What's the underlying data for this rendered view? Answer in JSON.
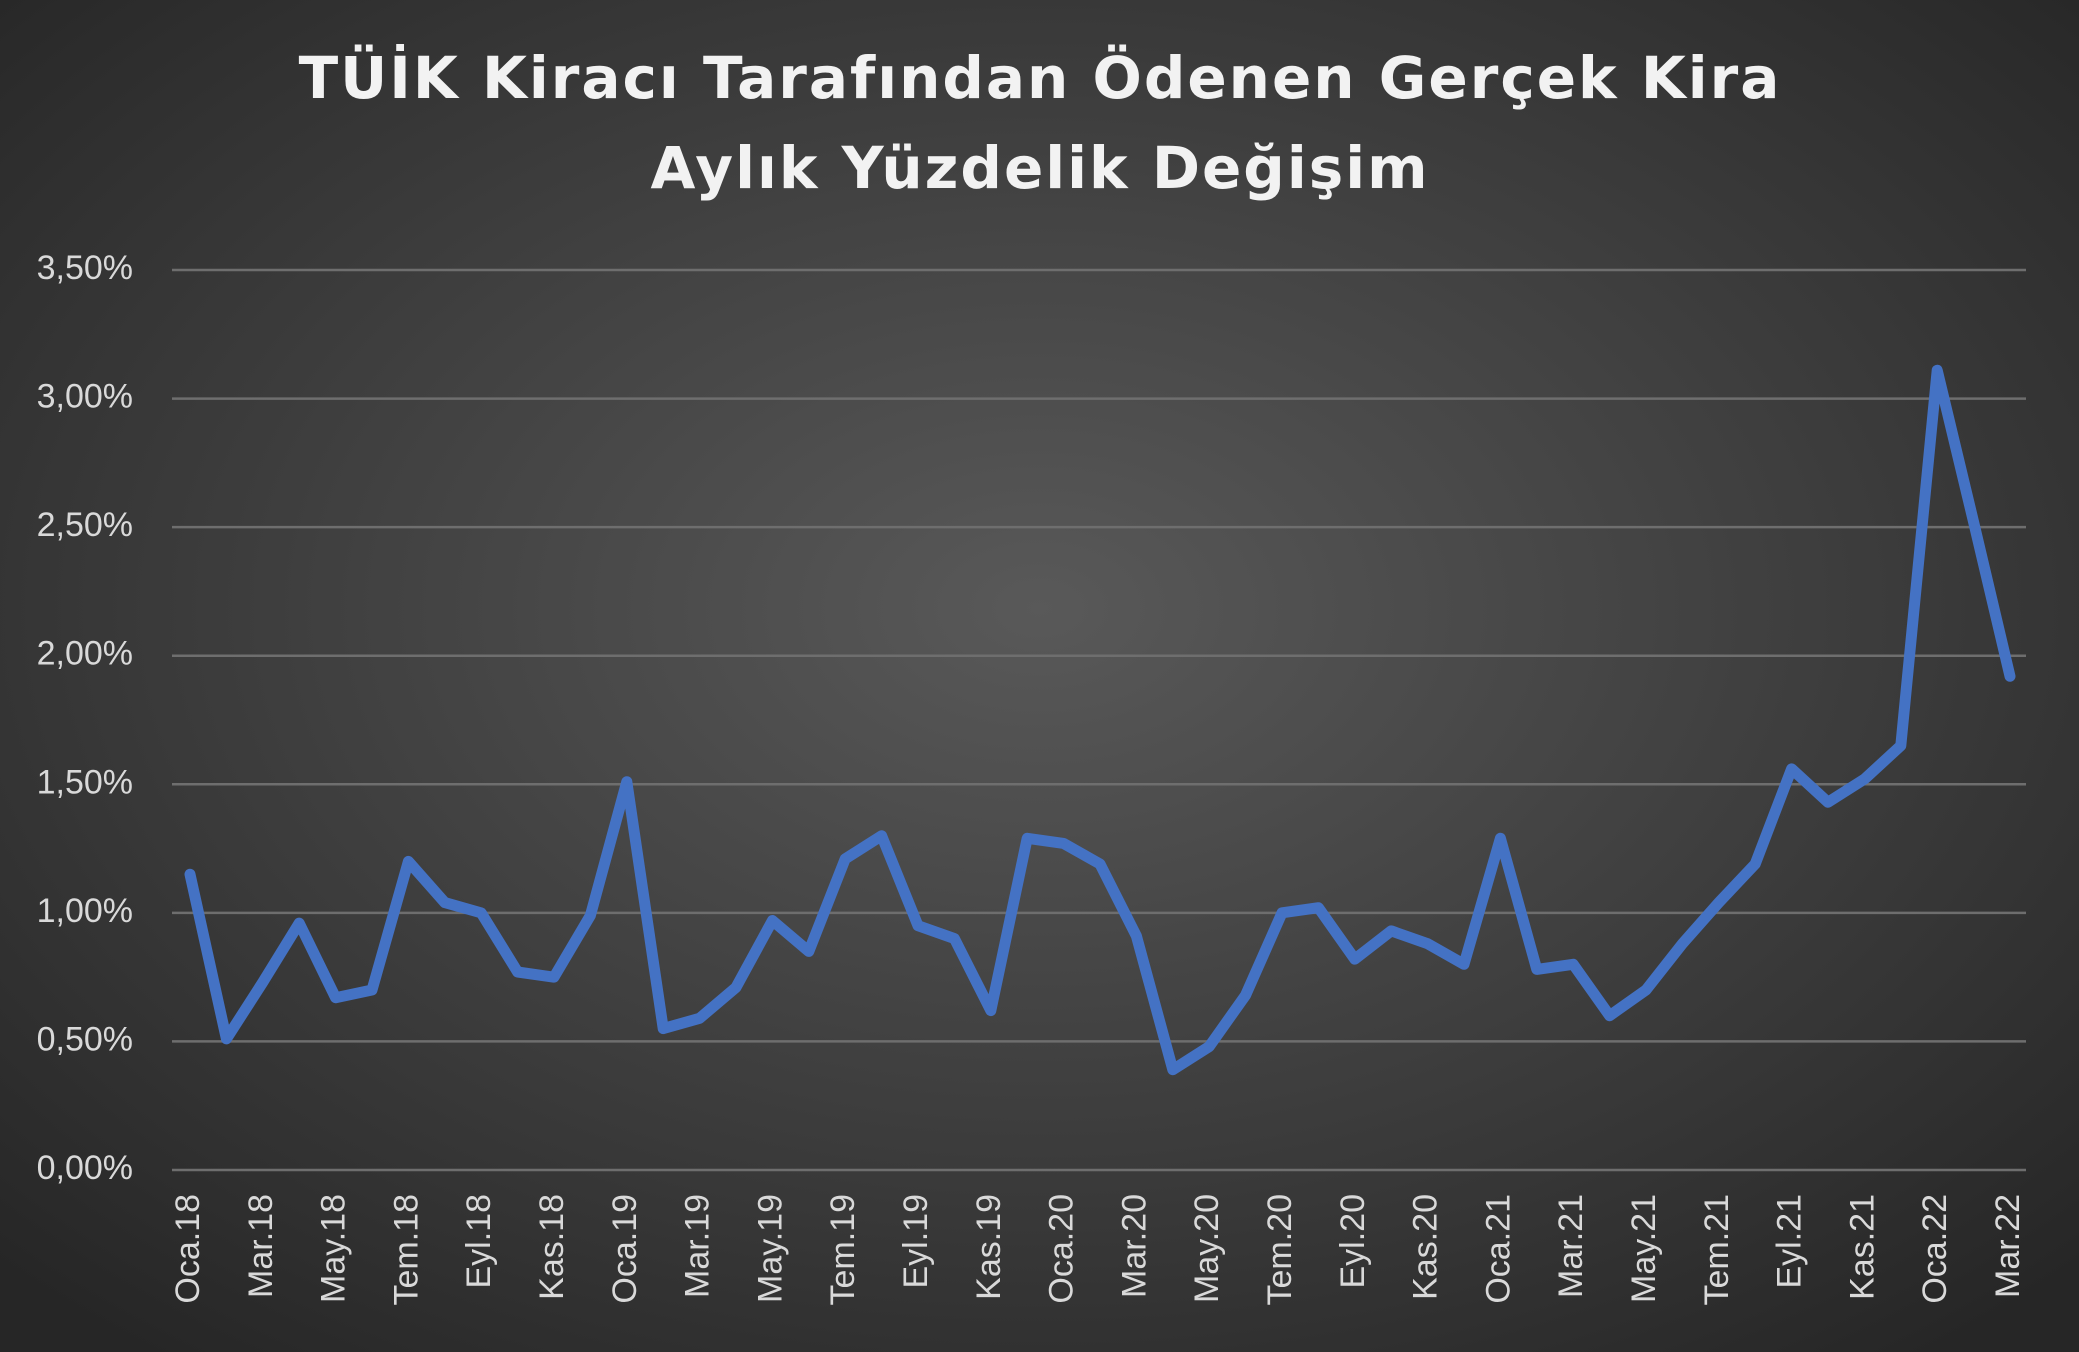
{
  "chart_data": {
    "type": "line",
    "title": [
      "TÜİK Kiracı Tarafından Ödenen Gerçek Kira",
      "Aylık Yüzdelik Değişim"
    ],
    "categories": [
      "Oca.18",
      null,
      "Mar.18",
      null,
      "May.18",
      null,
      "Tem.18",
      null,
      "Eyl.18",
      null,
      "Kas.18",
      null,
      "Oca.19",
      null,
      "Mar.19",
      null,
      "May.19",
      null,
      "Tem.19",
      null,
      "Eyl.19",
      null,
      "Kas.19",
      null,
      "Oca.20",
      null,
      "Mar.20",
      null,
      "May.20",
      null,
      "Tem.20",
      null,
      "Eyl.20",
      null,
      "Kas.20",
      null,
      "Oca.21",
      null,
      "Mar.21",
      null,
      "May.21",
      null,
      "Tem.21",
      null,
      "Eyl.21",
      null,
      "Kas.21",
      null,
      "Oca.22",
      null,
      "Mar.22"
    ],
    "series": [
      {
        "color": "#4472c4",
        "values": [
          1.15,
          0.51,
          0.73,
          0.96,
          0.67,
          0.7,
          1.2,
          1.04,
          1.0,
          0.77,
          0.75,
          0.99,
          1.51,
          0.55,
          0.59,
          0.71,
          0.97,
          0.85,
          1.21,
          1.3,
          0.95,
          0.9,
          0.62,
          1.29,
          1.27,
          1.19,
          0.91,
          0.39,
          0.48,
          0.68,
          1.0,
          1.02,
          0.82,
          0.93,
          0.88,
          0.8,
          1.29,
          0.78,
          0.8,
          0.6,
          0.7,
          0.88,
          1.04,
          1.19,
          1.56,
          1.43,
          1.52,
          1.65,
          3.11,
          2.52,
          1.92
        ]
      }
    ],
    "ylim": [
      0,
      3.5
    ],
    "yticks": [
      {
        "value": 0,
        "label": "0,00%"
      },
      {
        "value": 0.5,
        "label": "0,50%"
      },
      {
        "value": 1,
        "label": "1,00%"
      },
      {
        "value": 1.5,
        "label": "1,50%"
      },
      {
        "value": 2,
        "label": "2,00%"
      },
      {
        "value": 2.5,
        "label": "2,50%"
      },
      {
        "value": 3,
        "label": "3,00%"
      },
      {
        "value": 3.5,
        "label": "3,50%"
      }
    ],
    "grid": true
  }
}
